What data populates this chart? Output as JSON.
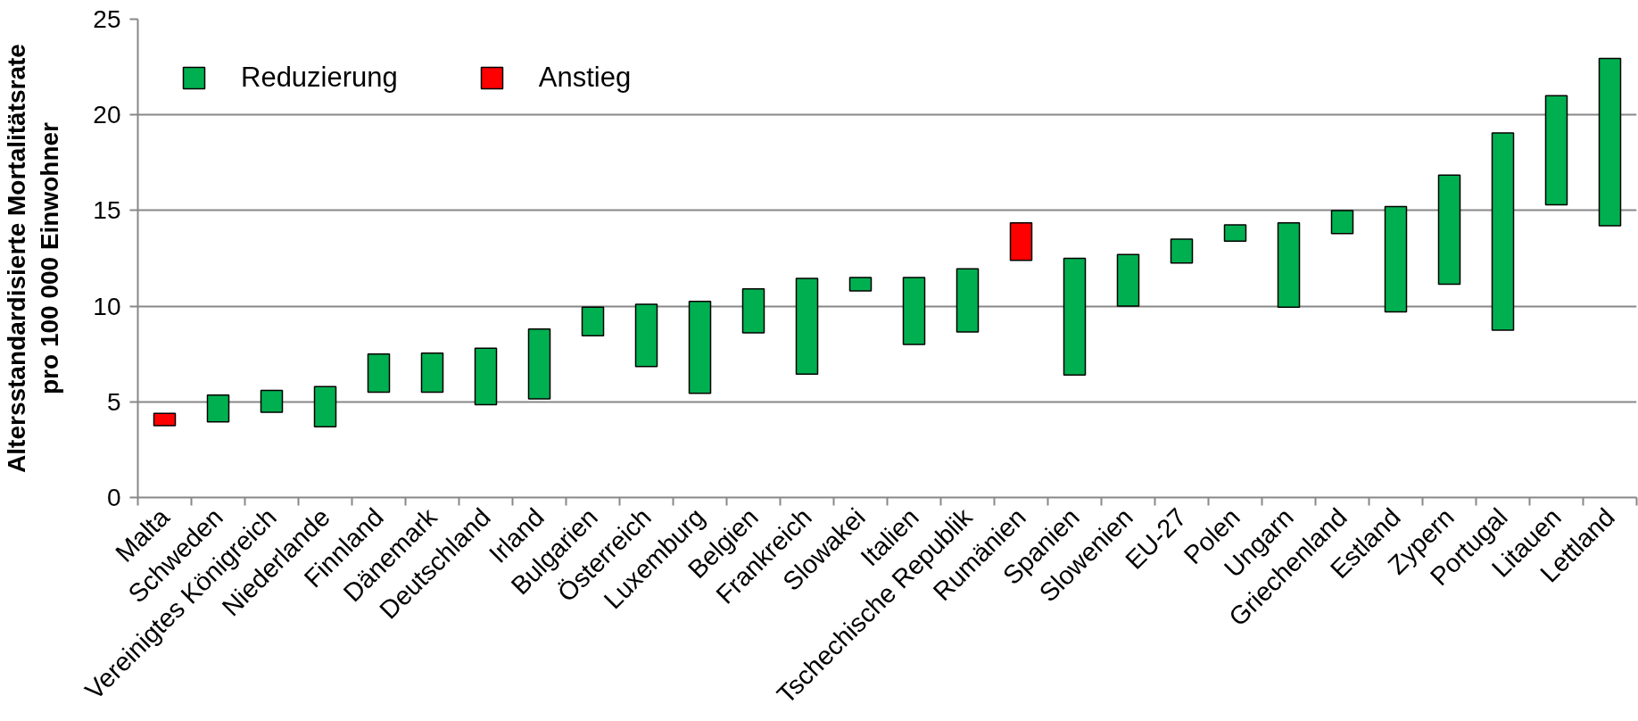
{
  "chart_data": {
    "type": "bar",
    "ylabel": "Altersstandardisierte Mortalitätsrate\npro 100 000 Einwohner",
    "categories": [
      "Malta",
      "Schweden",
      "Vereinigtes Königreich",
      "Niederlande",
      "Finnland",
      "Dänemark",
      "Deutschland",
      "Irland",
      "Bulgarien",
      "Österreich",
      "Luxemburg",
      "Belgien",
      "Frankreich",
      "Slowakei",
      "Italien",
      "Tschechische Republik",
      "Rumänien",
      "Spanien",
      "Slowenien",
      "EU-27",
      "Polen",
      "Ungarn",
      "Griechenland",
      "Estland",
      "Zypern",
      "Portugal",
      "Litauen",
      "Lettland"
    ],
    "series": [
      {
        "name": "Reduzierung",
        "color": "#00b050",
        "values": [
          null,
          1.4,
          1.15,
          2.1,
          2.0,
          2.05,
          2.95,
          3.65,
          1.5,
          3.25,
          4.8,
          2.3,
          5.0,
          0.7,
          3.5,
          3.3,
          null,
          6.1,
          2.7,
          1.25,
          0.85,
          4.4,
          1.2,
          5.5,
          5.7,
          10.3,
          5.7,
          8.75
        ],
        "base": [
          null,
          3.95,
          4.45,
          3.7,
          5.5,
          5.5,
          4.85,
          5.15,
          8.45,
          6.85,
          5.45,
          8.6,
          6.45,
          10.8,
          8.0,
          8.65,
          null,
          6.4,
          10.0,
          12.25,
          13.4,
          9.95,
          13.8,
          9.7,
          11.15,
          8.75,
          15.3,
          14.2
        ]
      },
      {
        "name": "Anstieg",
        "color": "#ff0000",
        "values": [
          0.65,
          null,
          null,
          null,
          null,
          null,
          null,
          null,
          null,
          null,
          null,
          null,
          null,
          null,
          null,
          null,
          1.95,
          null,
          null,
          null,
          null,
          null,
          null,
          null,
          null,
          null,
          null,
          null
        ],
        "base": [
          3.75,
          null,
          null,
          null,
          null,
          null,
          null,
          null,
          null,
          null,
          null,
          null,
          null,
          null,
          null,
          null,
          12.4,
          null,
          null,
          null,
          null,
          null,
          null,
          null,
          null,
          null,
          null,
          null
        ]
      }
    ],
    "ylim": [
      0,
      25
    ],
    "yticks": [
      0,
      5,
      10,
      15,
      20,
      25
    ],
    "grid": "y",
    "legend": "top left"
  }
}
